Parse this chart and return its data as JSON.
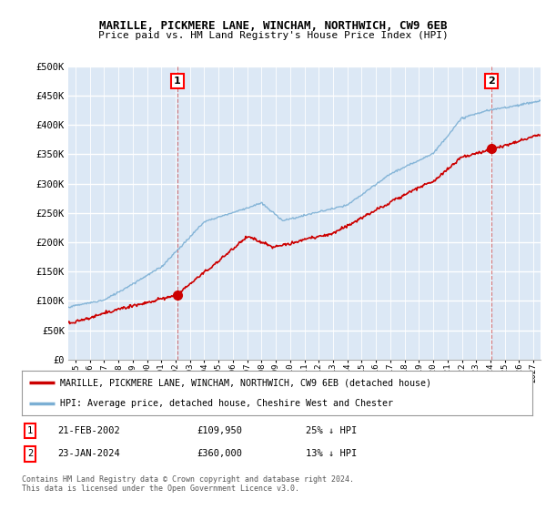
{
  "title": "MARILLE, PICKMERE LANE, WINCHAM, NORTHWICH, CW9 6EB",
  "subtitle": "Price paid vs. HM Land Registry's House Price Index (HPI)",
  "ylabel_ticks": [
    "£0",
    "£50K",
    "£100K",
    "£150K",
    "£200K",
    "£250K",
    "£300K",
    "£350K",
    "£400K",
    "£450K",
    "£500K"
  ],
  "ytick_vals": [
    0,
    50000,
    100000,
    150000,
    200000,
    250000,
    300000,
    350000,
    400000,
    450000,
    500000
  ],
  "ylim": [
    0,
    500000
  ],
  "xlim_start": 1994.5,
  "xlim_end": 2027.5,
  "bg_color": "#dce8f5",
  "grid_color": "#ffffff",
  "red_line_color": "#cc0000",
  "blue_line_color": "#7bafd4",
  "sale1_x": 2002.13,
  "sale1_y": 109950,
  "sale2_x": 2024.07,
  "sale2_y": 360000,
  "legend_line1": "MARILLE, PICKMERE LANE, WINCHAM, NORTHWICH, CW9 6EB (detached house)",
  "legend_line2": "HPI: Average price, detached house, Cheshire West and Chester",
  "table_row1": [
    "1",
    "21-FEB-2002",
    "£109,950",
    "25% ↓ HPI"
  ],
  "table_row2": [
    "2",
    "23-JAN-2024",
    "£360,000",
    "13% ↓ HPI"
  ],
  "footnote": "Contains HM Land Registry data © Crown copyright and database right 2024.\nThis data is licensed under the Open Government Licence v3.0.",
  "xtick_years": [
    1995,
    1996,
    1997,
    1998,
    1999,
    2000,
    2001,
    2002,
    2003,
    2004,
    2005,
    2006,
    2007,
    2008,
    2009,
    2010,
    2011,
    2012,
    2013,
    2014,
    2015,
    2016,
    2017,
    2018,
    2019,
    2020,
    2021,
    2022,
    2023,
    2024,
    2025,
    2026,
    2027
  ]
}
